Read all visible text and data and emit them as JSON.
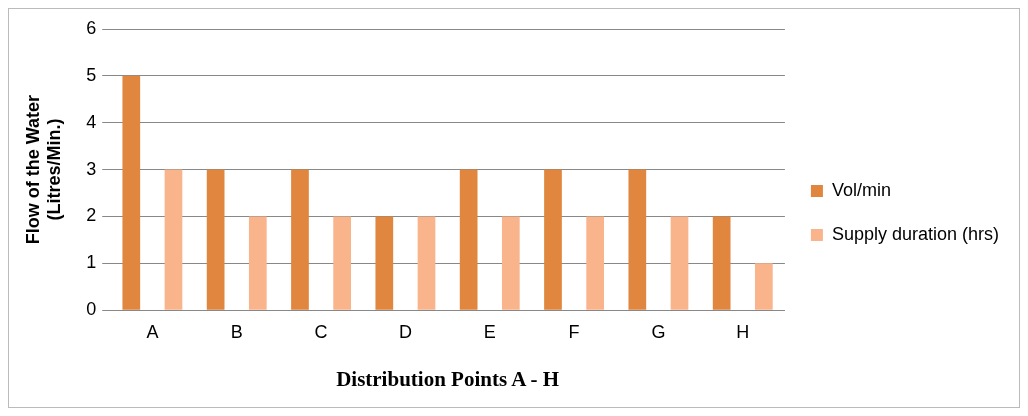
{
  "chart_data": {
    "type": "bar",
    "xlabel": "Distribution Points A - H",
    "ylabel": "Flow of the Water\n(Litres/Min.)",
    "categories": [
      "A",
      "B",
      "C",
      "D",
      "E",
      "F",
      "G",
      "H"
    ],
    "series": [
      {
        "name": "Vol/min",
        "color": "#e0863f",
        "values": [
          5,
          3,
          3,
          2,
          3,
          3,
          3,
          2
        ]
      },
      {
        "name": "Supply duration (hrs)",
        "color": "#f9b48c",
        "values": [
          3,
          2,
          2,
          2,
          2,
          2,
          2,
          1
        ]
      }
    ],
    "ylim": [
      0,
      6
    ],
    "yticks": [
      0,
      1,
      2,
      3,
      4,
      5,
      6
    ],
    "grid": "y",
    "legend": "right"
  }
}
